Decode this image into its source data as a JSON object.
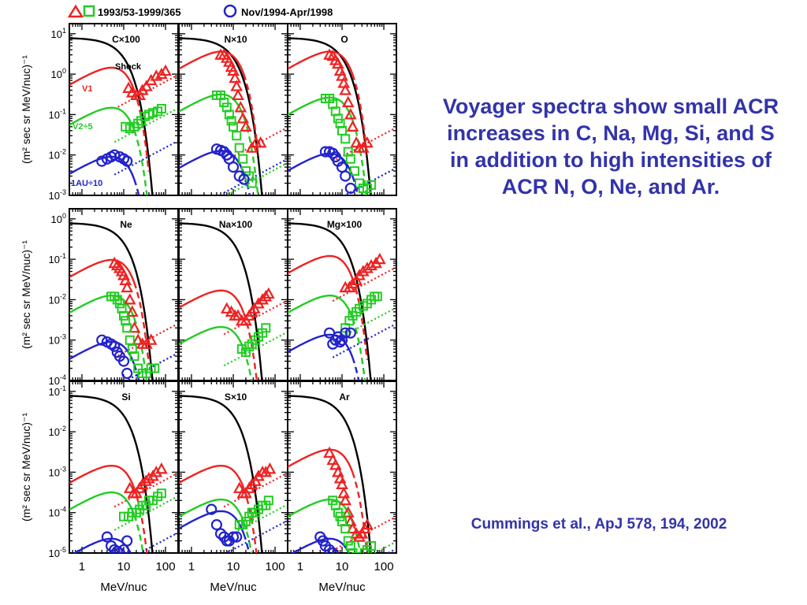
{
  "slide": {
    "title": "Voyager spectra show small ACR increases in C, Na, Mg, Si, and S in addition to high intensities of ACR N, O, Ne, and Ar.",
    "citation": "Cummings et al., ApJ 578, 194, 2002"
  },
  "chart_data": {
    "type": "scatter",
    "legend": {
      "position": "top",
      "entries": [
        {
          "label": "1993/53-1999/365",
          "markers": [
            "triangle",
            "square"
          ],
          "colors": [
            "#ee2222",
            "#22cc22"
          ]
        },
        {
          "label": "Nov/1994-Apr/1998",
          "markers": [
            "circle"
          ],
          "colors": [
            "#2222cc"
          ]
        }
      ]
    },
    "ylabel": "(m² sec sr MeV/nuc)⁻¹",
    "xlabel": "MeV/nuc",
    "xscale": "log",
    "yscale": "log",
    "xlim": [
      0.5,
      200
    ],
    "xticks": [
      "1",
      "10",
      "100"
    ],
    "colors": {
      "shock": "#000000",
      "v1": "#ee2222",
      "v2": "#22cc22",
      "au1": "#2222cc"
    },
    "curve_labels": {
      "shock": "Shock",
      "v1": "V1",
      "v2": "V2÷5",
      "au1": "1AU÷10"
    },
    "panels": [
      {
        "name": "C×100",
        "ylim_exp": [
          -3,
          1
        ],
        "yticks": [
          "10-3",
          "10-2",
          "10-1",
          "100",
          "101"
        ],
        "v1": [
          [
            13,
            0.45
          ],
          [
            16,
            0.35
          ],
          [
            20,
            0.3
          ],
          [
            24,
            0.3
          ],
          [
            28,
            0.4
          ],
          [
            35,
            0.5
          ],
          [
            45,
            0.7
          ],
          [
            60,
            0.9
          ],
          [
            80,
            1.0
          ],
          [
            100,
            1.2
          ]
        ],
        "v2": [
          [
            11,
            0.05
          ],
          [
            14,
            0.045
          ],
          [
            18,
            0.05
          ],
          [
            22,
            0.06
          ],
          [
            26,
            0.07
          ],
          [
            32,
            0.09
          ],
          [
            40,
            0.1
          ],
          [
            50,
            0.11
          ],
          [
            65,
            0.12
          ],
          [
            80,
            0.14
          ]
        ],
        "au1": [
          [
            3,
            0.007
          ],
          [
            4,
            0.008
          ],
          [
            5,
            0.009
          ],
          [
            6,
            0.01
          ],
          [
            8,
            0.009
          ],
          [
            10,
            0.008
          ],
          [
            12,
            0.007
          ]
        ]
      },
      {
        "name": "N×10",
        "ylim_exp": [
          -3,
          1
        ],
        "yticks": [],
        "v1": [
          [
            5,
            3.0
          ],
          [
            6,
            3.0
          ],
          [
            7,
            2.5
          ],
          [
            8,
            2.0
          ],
          [
            9,
            1.5
          ],
          [
            10,
            1.2
          ],
          [
            11,
            0.8
          ],
          [
            12,
            0.5
          ],
          [
            13,
            0.3
          ],
          [
            15,
            0.15
          ],
          [
            17,
            0.08
          ],
          [
            20,
            0.05
          ],
          [
            28,
            0.015
          ],
          [
            35,
            0.02
          ],
          [
            45,
            0.02
          ]
        ],
        "v2": [
          [
            4,
            0.3
          ],
          [
            5,
            0.3
          ],
          [
            6,
            0.2
          ],
          [
            7,
            0.15
          ],
          [
            8,
            0.1
          ],
          [
            9,
            0.07
          ],
          [
            10,
            0.05
          ],
          [
            12,
            0.03
          ],
          [
            14,
            0.015
          ],
          [
            17,
            0.008
          ],
          [
            20,
            0.004
          ],
          [
            24,
            0.003
          ],
          [
            28,
            0.002
          ]
        ],
        "au1": [
          [
            4,
            0.014
          ],
          [
            5,
            0.013
          ],
          [
            6,
            0.012
          ],
          [
            7,
            0.01
          ],
          [
            8,
            0.008
          ],
          [
            10,
            0.005
          ],
          [
            14,
            0.003
          ],
          [
            18,
            0.0025
          ]
        ]
      },
      {
        "name": "O",
        "ylim_exp": [
          -3,
          1
        ],
        "yticks": [],
        "v1": [
          [
            5,
            3.0
          ],
          [
            6,
            2.8
          ],
          [
            7,
            2.2
          ],
          [
            8,
            1.8
          ],
          [
            9,
            1.2
          ],
          [
            10,
            0.9
          ],
          [
            11,
            0.6
          ],
          [
            12,
            0.4
          ],
          [
            14,
            0.2
          ],
          [
            16,
            0.1
          ],
          [
            18,
            0.05
          ],
          [
            22,
            0.02
          ],
          [
            26,
            0.015
          ],
          [
            32,
            0.015
          ],
          [
            40,
            0.02
          ]
        ],
        "v2": [
          [
            4,
            0.25
          ],
          [
            5,
            0.25
          ],
          [
            6,
            0.18
          ],
          [
            7,
            0.12
          ],
          [
            8,
            0.08
          ],
          [
            9,
            0.06
          ],
          [
            10,
            0.04
          ],
          [
            12,
            0.025
          ],
          [
            14,
            0.012
          ],
          [
            16,
            0.008
          ],
          [
            20,
            0.004
          ],
          [
            26,
            0.002
          ],
          [
            32,
            0.0015
          ],
          [
            40,
            0.0015
          ],
          [
            50,
            0.0018
          ]
        ],
        "au1": [
          [
            4,
            0.012
          ],
          [
            5,
            0.012
          ],
          [
            6,
            0.011
          ],
          [
            7,
            0.009
          ],
          [
            8,
            0.007
          ],
          [
            10,
            0.005
          ],
          [
            12,
            0.003
          ],
          [
            16,
            0.0015
          ]
        ]
      },
      {
        "name": "Ne",
        "ylim_exp": [
          -4,
          0
        ],
        "yticks": [
          "10-4",
          "10-3",
          "10-2",
          "10-1",
          "100"
        ],
        "v1": [
          [
            6,
            0.08
          ],
          [
            7,
            0.07
          ],
          [
            8,
            0.06
          ],
          [
            9,
            0.05
          ],
          [
            10,
            0.04
          ],
          [
            11,
            0.03
          ],
          [
            12,
            0.02
          ],
          [
            14,
            0.01
          ],
          [
            16,
            0.005
          ],
          [
            18,
            0.002
          ],
          [
            22,
            0.001
          ],
          [
            28,
            0.0008
          ],
          [
            35,
            0.0008
          ],
          [
            45,
            0.001
          ]
        ],
        "v2": [
          [
            5,
            0.012
          ],
          [
            6,
            0.012
          ],
          [
            7,
            0.01
          ],
          [
            8,
            0.008
          ],
          [
            9,
            0.006
          ],
          [
            10,
            0.004
          ],
          [
            11,
            0.003
          ],
          [
            12,
            0.002
          ],
          [
            14,
            0.001
          ],
          [
            16,
            0.0006
          ],
          [
            18,
            0.0004
          ],
          [
            22,
            0.0002
          ],
          [
            28,
            0.00015
          ],
          [
            35,
            0.00015
          ],
          [
            45,
            0.0002
          ],
          [
            55,
            0.0002
          ]
        ],
        "au1": [
          [
            3,
            0.001
          ],
          [
            4,
            0.0009
          ],
          [
            5,
            0.0008
          ],
          [
            6,
            0.0007
          ],
          [
            7,
            0.0005
          ],
          [
            8,
            0.0004
          ],
          [
            10,
            0.0003
          ],
          [
            12,
            0.00015
          ]
        ]
      },
      {
        "name": "Na×100",
        "ylim_exp": [
          -4,
          0
        ],
        "yticks": [],
        "v1": [
          [
            7,
            0.006
          ],
          [
            9,
            0.005
          ],
          [
            11,
            0.004
          ],
          [
            13,
            0.004
          ],
          [
            16,
            0.003
          ],
          [
            20,
            0.003
          ],
          [
            24,
            0.004
          ],
          [
            28,
            0.005
          ],
          [
            32,
            0.006
          ],
          [
            40,
            0.008
          ],
          [
            50,
            0.01
          ],
          [
            60,
            0.012
          ],
          [
            70,
            0.014
          ]
        ],
        "v2": [
          [
            16,
            0.0006
          ],
          [
            20,
            0.0005
          ],
          [
            24,
            0.0007
          ],
          [
            28,
            0.0008
          ],
          [
            34,
            0.001
          ],
          [
            40,
            0.0012
          ],
          [
            50,
            0.0015
          ],
          [
            60,
            0.002
          ]
        ],
        "au1": []
      },
      {
        "name": "Mg×100",
        "ylim_exp": [
          -4,
          0
        ],
        "yticks": [],
        "v1": [
          [
            12,
            0.02
          ],
          [
            15,
            0.02
          ],
          [
            18,
            0.025
          ],
          [
            22,
            0.03
          ],
          [
            26,
            0.04
          ],
          [
            32,
            0.05
          ],
          [
            40,
            0.06
          ],
          [
            50,
            0.07
          ],
          [
            65,
            0.08
          ],
          [
            80,
            0.1
          ]
        ],
        "v2": [
          [
            12,
            0.002
          ],
          [
            15,
            0.003
          ],
          [
            18,
            0.004
          ],
          [
            22,
            0.005
          ],
          [
            26,
            0.006
          ],
          [
            32,
            0.007
          ],
          [
            40,
            0.008
          ],
          [
            50,
            0.01
          ],
          [
            60,
            0.012
          ],
          [
            70,
            0.012
          ]
        ],
        "au1": [
          [
            5,
            0.0015
          ],
          [
            6,
            0.0008
          ],
          [
            7,
            0.001
          ],
          [
            8,
            0.0012
          ],
          [
            9,
            0.0009
          ],
          [
            10,
            0.001
          ],
          [
            12,
            0.0015
          ],
          [
            16,
            0.0015
          ]
        ]
      },
      {
        "name": "Si",
        "ylim_exp": [
          -5,
          -1
        ],
        "yticks": [
          "10-5",
          "10-4",
          "10-3",
          "10-2",
          "10-1"
        ],
        "v1": [
          [
            14,
            0.0004
          ],
          [
            17,
            0.0003
          ],
          [
            20,
            0.0003
          ],
          [
            24,
            0.0004
          ],
          [
            28,
            0.0005
          ],
          [
            34,
            0.0006
          ],
          [
            40,
            0.0007
          ],
          [
            50,
            0.0008
          ],
          [
            60,
            0.001
          ],
          [
            80,
            0.0012
          ]
        ],
        "v2": [
          [
            10,
            8e-05
          ],
          [
            13,
            8e-05
          ],
          [
            16,
            0.0001
          ],
          [
            20,
            0.0001
          ],
          [
            24,
            0.00012
          ],
          [
            28,
            0.00015
          ],
          [
            34,
            0.00015
          ],
          [
            40,
            0.0002
          ],
          [
            50,
            0.0002
          ],
          [
            65,
            0.00025
          ],
          [
            80,
            0.0003
          ]
        ],
        "au1": [
          [
            4,
            2.5e-05
          ],
          [
            5,
            1.5e-05
          ],
          [
            6,
            1.2e-05
          ],
          [
            7,
            1.1e-05
          ],
          [
            8,
            1e-05
          ],
          [
            10,
            1.2e-05
          ],
          [
            12,
            2e-05
          ]
        ]
      },
      {
        "name": "S×10",
        "ylim_exp": [
          -5,
          -1
        ],
        "yticks": [],
        "v1": [
          [
            14,
            0.0004
          ],
          [
            17,
            0.0003
          ],
          [
            20,
            0.0003
          ],
          [
            24,
            0.0004
          ],
          [
            28,
            0.0005
          ],
          [
            34,
            0.0006
          ],
          [
            40,
            0.0008
          ],
          [
            50,
            0.001
          ],
          [
            60,
            0.001
          ],
          [
            75,
            0.0012
          ]
        ],
        "v2": [
          [
            14,
            5e-05
          ],
          [
            17,
            5e-05
          ],
          [
            20,
            6e-05
          ],
          [
            24,
            8e-05
          ],
          [
            28,
            0.0001
          ],
          [
            34,
            0.0001
          ],
          [
            40,
            0.00012
          ],
          [
            50,
            0.00015
          ],
          [
            60,
            0.00015
          ],
          [
            70,
            0.0002
          ]
        ],
        "au1": [
          [
            3,
            0.00012
          ],
          [
            4,
            5e-05
          ],
          [
            5,
            3e-05
          ],
          [
            6,
            2.5e-05
          ],
          [
            7,
            2e-05
          ],
          [
            8,
            2e-05
          ],
          [
            10,
            2.5e-05
          ],
          [
            12,
            2.5e-05
          ]
        ]
      },
      {
        "name": "Ar",
        "ylim_exp": [
          -5,
          -1
        ],
        "yticks": [],
        "v1": [
          [
            5,
            0.003
          ],
          [
            6,
            0.002
          ],
          [
            7,
            0.0015
          ],
          [
            8,
            0.001
          ],
          [
            9,
            0.0007
          ],
          [
            10,
            0.0005
          ],
          [
            11,
            0.0003
          ],
          [
            12,
            0.0002
          ],
          [
            14,
            0.0001
          ],
          [
            16,
            6e-05
          ],
          [
            18,
            4e-05
          ],
          [
            22,
            3e-05
          ],
          [
            26,
            2.5e-05
          ],
          [
            30,
            3e-05
          ],
          [
            35,
            4e-05
          ],
          [
            40,
            5e-05
          ]
        ],
        "v2": [
          [
            6,
            0.0002
          ],
          [
            7,
            0.00015
          ],
          [
            8,
            0.0001
          ],
          [
            9,
            8e-05
          ],
          [
            10,
            6e-05
          ],
          [
            12,
            4e-05
          ],
          [
            14,
            2e-05
          ],
          [
            16,
            1.5e-05
          ],
          [
            18,
            1e-05
          ],
          [
            22,
            8e-06
          ],
          [
            26,
            6e-06
          ],
          [
            30,
            7e-06
          ],
          [
            35,
            1e-05
          ],
          [
            40,
            1.2e-05
          ],
          [
            50,
            1.5e-05
          ]
        ],
        "au1": [
          [
            3,
            2.5e-05
          ],
          [
            3.5,
            2e-05
          ],
          [
            4,
            1.5e-05
          ],
          [
            5,
            1.2e-05
          ],
          [
            6,
            1e-05
          ],
          [
            7,
            7e-06
          ],
          [
            8,
            5e-06
          ],
          [
            10,
            4e-06
          ],
          [
            12,
            4e-06
          ]
        ]
      }
    ]
  }
}
